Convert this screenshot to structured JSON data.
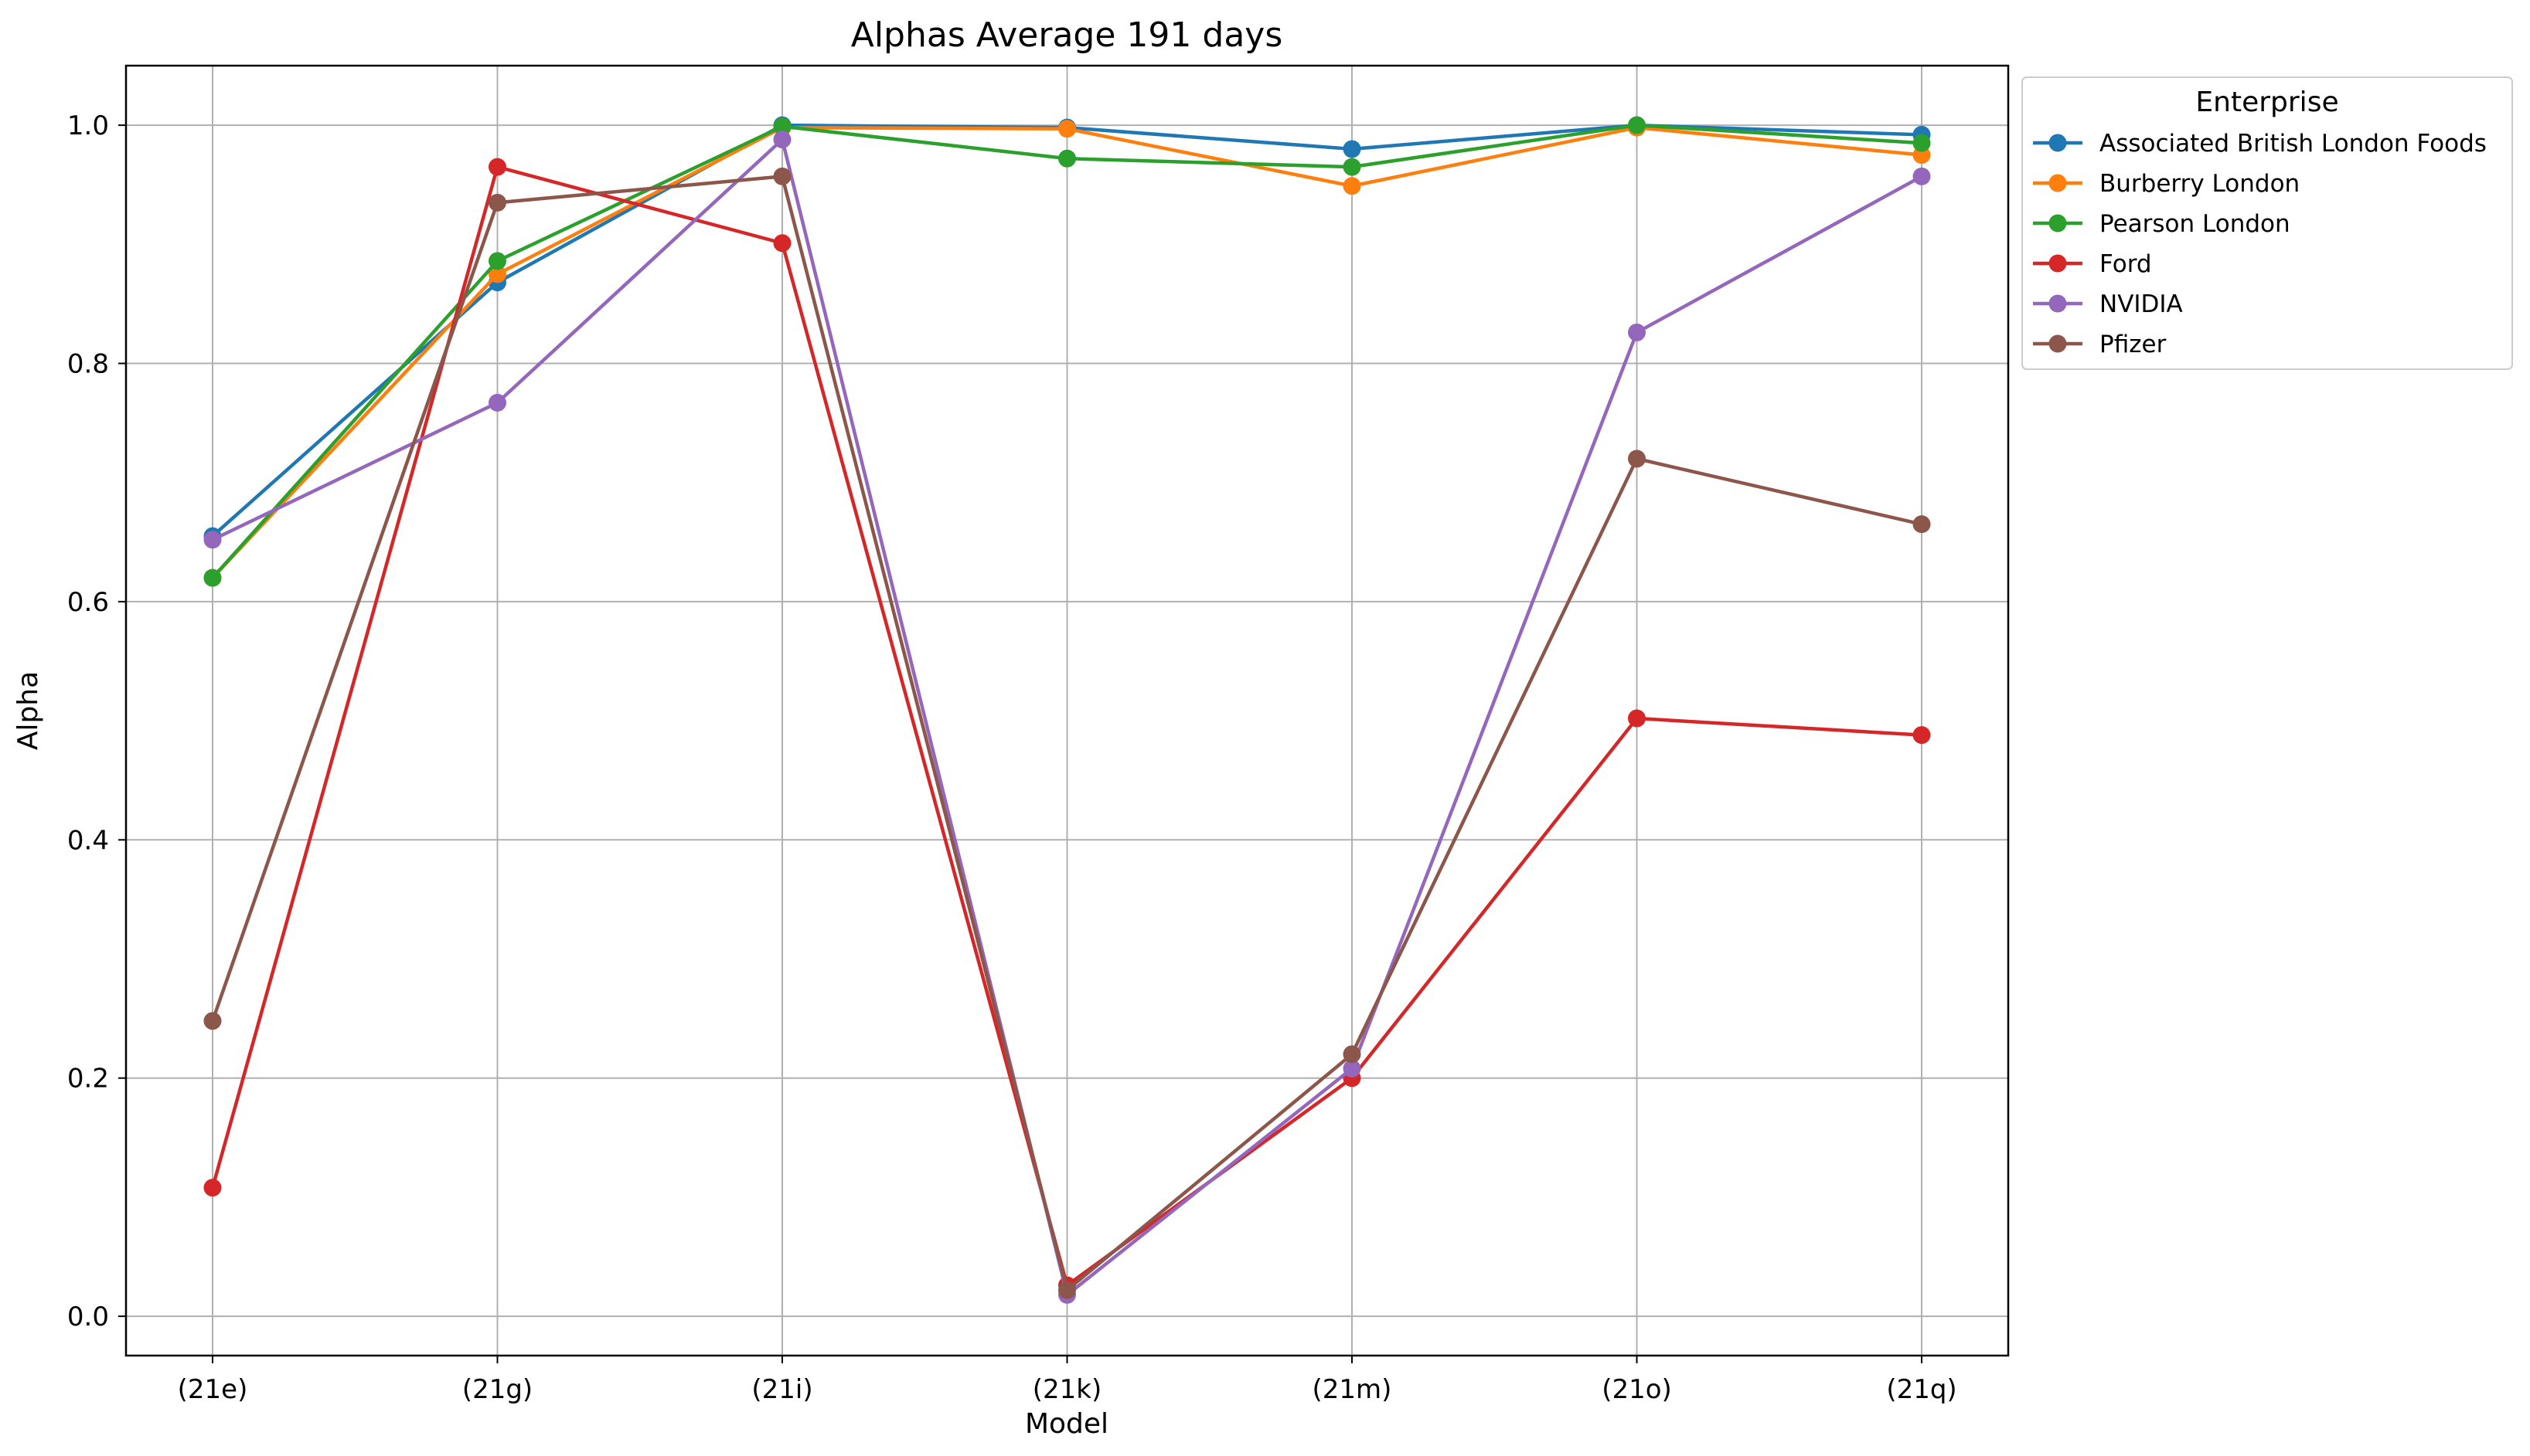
{
  "chart_data": {
    "type": "line",
    "title": "Alphas Average 191 days",
    "xlabel": "Model",
    "ylabel": "Alpha",
    "categories": [
      "(21e)",
      "(21g)",
      "(21i)",
      "(21k)",
      "(21m)",
      "(21o)",
      "(21q)"
    ],
    "ylim": [
      -0.033,
      1.05
    ],
    "yticks": [
      0.0,
      0.2,
      0.4,
      0.6,
      0.8,
      1.0
    ],
    "ytick_labels": [
      "0.0",
      "0.2",
      "0.4",
      "0.6",
      "0.8",
      "1.0"
    ],
    "grid": true,
    "legend": {
      "title": "Enterprise",
      "placement": "outside-top-right"
    },
    "series": [
      {
        "name": "Associated British London Foods",
        "color": "#1f77b4",
        "values": [
          0.655,
          0.868,
          1.0,
          0.998,
          0.98,
          1.0,
          0.992
        ]
      },
      {
        "name": "Burberry London",
        "color": "#ff7f0e",
        "values": [
          0.62,
          0.875,
          0.998,
          0.997,
          0.949,
          0.998,
          0.975
        ]
      },
      {
        "name": "Pearson London",
        "color": "#2ca02c",
        "values": [
          0.62,
          0.886,
          0.999,
          0.972,
          0.965,
          1.0,
          0.985
        ]
      },
      {
        "name": "Ford",
        "color": "#d62728",
        "values": [
          0.108,
          0.965,
          0.901,
          0.026,
          0.2,
          0.502,
          0.488
        ]
      },
      {
        "name": "NVIDIA",
        "color": "#9467bd",
        "values": [
          0.652,
          0.767,
          0.988,
          0.018,
          0.208,
          0.826,
          0.957
        ]
      },
      {
        "name": "Pfizer",
        "color": "#8c564b",
        "values": [
          0.248,
          0.935,
          0.957,
          0.022,
          0.22,
          0.72,
          0.665
        ]
      }
    ]
  }
}
